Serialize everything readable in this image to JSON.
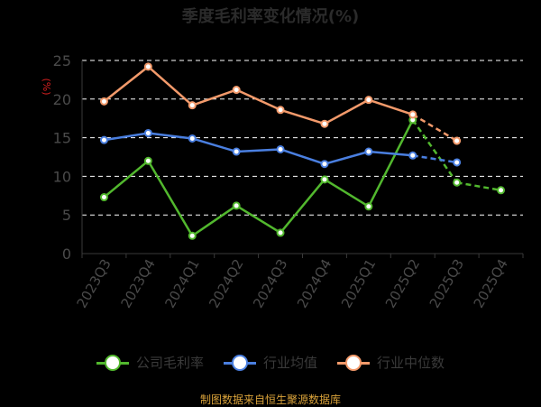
{
  "chart_data": {
    "type": "line",
    "title": "季度毛利率变化情况(%)",
    "ylabel": "(%)",
    "ylim": [
      0,
      25
    ],
    "yticks": [
      0,
      5,
      10,
      15,
      20,
      25
    ],
    "grid": true,
    "legend_position": "bottom",
    "categories": [
      "2023Q3",
      "2023Q4",
      "2024Q1",
      "2024Q2",
      "2024Q3",
      "2024Q4",
      "2025Q1",
      "2025Q2",
      "2025Q3",
      "2025Q4"
    ],
    "series": [
      {
        "name": "公司毛利率",
        "color": "#52b82e",
        "values": [
          7.3,
          12.0,
          2.3,
          6.2,
          2.7,
          9.6,
          6.1,
          17.3,
          9.2,
          8.2
        ]
      },
      {
        "name": "行业均值",
        "color": "#4a7fe0",
        "values": [
          14.7,
          15.6,
          14.9,
          13.2,
          13.5,
          11.6,
          13.2,
          12.7,
          11.8,
          null
        ]
      },
      {
        "name": "行业中位数",
        "color": "#f39a6b",
        "values": [
          19.7,
          24.2,
          19.2,
          21.2,
          18.6,
          16.8,
          19.9,
          18.0,
          14.6,
          null
        ]
      }
    ],
    "dashed_segments_from_index": 7
  },
  "source_text": "制图数据来自恒生聚源数据库"
}
